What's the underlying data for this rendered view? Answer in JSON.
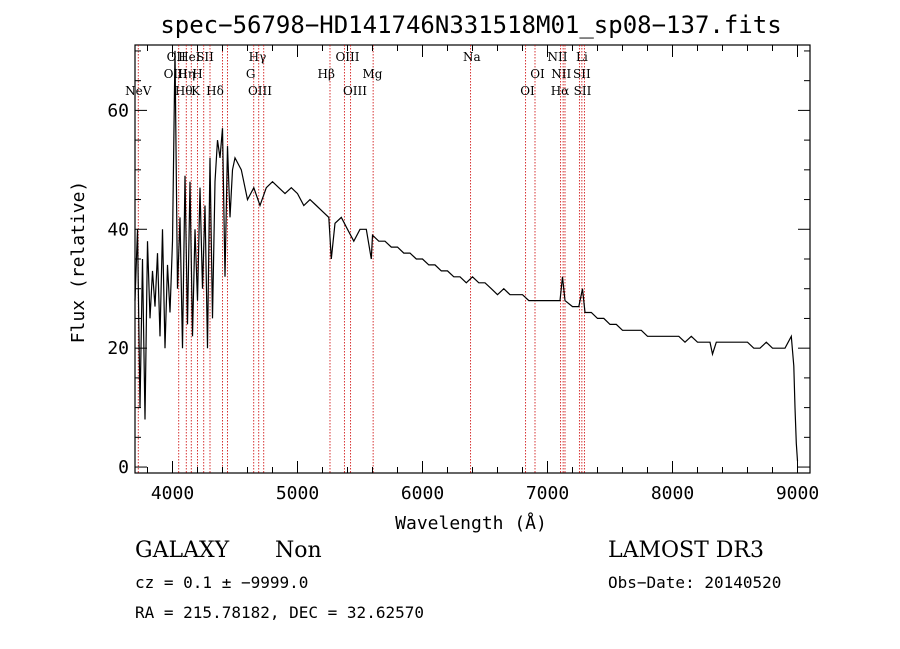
{
  "chart_data": {
    "type": "line",
    "title": "spec−56798−HD141746N331518M01_sp08−137.fits",
    "xlabel": "Wavelength (Å)",
    "ylabel": "Flux (relative)",
    "xlim": [
      3700,
      9100
    ],
    "ylim": [
      -1,
      71
    ],
    "xticks": [
      4000,
      5000,
      6000,
      7000,
      8000,
      9000
    ],
    "yticks": [
      0,
      20,
      40,
      60
    ],
    "grid": false,
    "series": [
      {
        "name": "spectrum",
        "x": [
          3700,
          3720,
          3740,
          3760,
          3780,
          3800,
          3820,
          3840,
          3860,
          3880,
          3900,
          3920,
          3940,
          3960,
          3980,
          4000,
          4020,
          4040,
          4060,
          4080,
          4100,
          4120,
          4140,
          4160,
          4180,
          4200,
          4220,
          4240,
          4260,
          4280,
          4300,
          4320,
          4340,
          4360,
          4380,
          4400,
          4420,
          4440,
          4460,
          4480,
          4500,
          4550,
          4600,
          4650,
          4700,
          4750,
          4800,
          4850,
          4900,
          4950,
          5000,
          5050,
          5100,
          5150,
          5200,
          5250,
          5270,
          5300,
          5350,
          5400,
          5450,
          5500,
          5550,
          5590,
          5600,
          5650,
          5700,
          5750,
          5800,
          5850,
          5900,
          5950,
          6000,
          6050,
          6100,
          6150,
          6200,
          6250,
          6300,
          6350,
          6400,
          6450,
          6500,
          6550,
          6600,
          6650,
          6700,
          6750,
          6800,
          6850,
          6900,
          6950,
          7000,
          7050,
          7100,
          7120,
          7140,
          7200,
          7250,
          7280,
          7300,
          7350,
          7400,
          7450,
          7500,
          7550,
          7600,
          7650,
          7700,
          7750,
          7800,
          7850,
          7900,
          7950,
          8000,
          8050,
          8100,
          8150,
          8200,
          8250,
          8300,
          8320,
          8350,
          8400,
          8450,
          8500,
          8550,
          8600,
          8650,
          8700,
          8750,
          8800,
          8850,
          8900,
          8950,
          8970,
          8980,
          8990,
          9000
        ],
        "values": [
          28,
          40,
          10,
          35,
          8,
          38,
          25,
          33,
          27,
          36,
          22,
          40,
          20,
          34,
          26,
          38,
          70,
          30,
          42,
          20,
          49,
          24,
          48,
          22,
          40,
          28,
          47,
          30,
          44,
          20,
          52,
          25,
          48,
          55,
          52,
          57,
          32,
          54,
          42,
          50,
          52,
          50,
          45,
          47,
          44,
          47,
          48,
          47,
          46,
          47,
          46,
          44,
          45,
          44,
          43,
          42,
          35,
          41,
          42,
          40,
          38,
          40,
          40,
          35,
          39,
          38,
          38,
          37,
          37,
          36,
          36,
          35,
          35,
          34,
          34,
          33,
          33,
          32,
          32,
          31,
          32,
          31,
          31,
          30,
          29,
          30,
          29,
          29,
          29,
          28,
          28,
          28,
          28,
          28,
          28,
          32,
          28,
          27,
          27,
          30,
          26,
          26,
          25,
          25,
          24,
          24,
          23,
          23,
          23,
          23,
          22,
          22,
          22,
          22,
          22,
          22,
          21,
          22,
          21,
          21,
          21,
          19,
          21,
          21,
          21,
          21,
          21,
          21,
          20,
          20,
          21,
          20,
          20,
          20,
          22,
          17,
          10,
          4,
          1
        ]
      }
    ],
    "spectral_lines": [
      {
        "label": "NeV",
        "x": 3726,
        "row": 3
      },
      {
        "label": "OII",
        "x": 4030,
        "row": 1
      },
      {
        "label": "OIII",
        "x": 4025,
        "row": 2
      },
      {
        "label": "Hθ",
        "x": 4090,
        "row": 3
      },
      {
        "label": "HeI",
        "x": 4135,
        "row": 1
      },
      {
        "label": "Hη",
        "x": 4110,
        "row": 2
      },
      {
        "label": "H",
        "x": 4200,
        "row": 2
      },
      {
        "label": "K",
        "x": 4185,
        "row": 3
      },
      {
        "label": "SII",
        "x": 4260,
        "row": 1
      },
      {
        "label": "Hδ",
        "x": 4340,
        "row": 3
      },
      {
        "label": "Hγ",
        "x": 4680,
        "row": 1
      },
      {
        "label": "G",
        "x": 4625,
        "row": 2
      },
      {
        "label": "OIII",
        "x": 4700,
        "row": 3
      },
      {
        "label": "Hβ",
        "x": 5230,
        "row": 2
      },
      {
        "label": "OIII",
        "x": 5400,
        "row": 1
      },
      {
        "label": "OIII",
        "x": 5460,
        "row": 3
      },
      {
        "label": "Mg",
        "x": 5600,
        "row": 2
      },
      {
        "label": "Na",
        "x": 6395,
        "row": 1
      },
      {
        "label": "OI",
        "x": 6920,
        "row": 2
      },
      {
        "label": "OI",
        "x": 6840,
        "row": 3
      },
      {
        "label": "NII",
        "x": 7080,
        "row": 1
      },
      {
        "label": "NII",
        "x": 7110,
        "row": 2
      },
      {
        "label": "Hα",
        "x": 7100,
        "row": 3
      },
      {
        "label": "Li",
        "x": 7275,
        "row": 1
      },
      {
        "label": "SII",
        "x": 7275,
        "row": 2
      },
      {
        "label": "SII",
        "x": 7280,
        "row": 3
      }
    ],
    "line_markers_x": [
      3726,
      4050,
      4110,
      4150,
      4200,
      4250,
      4300,
      4400,
      4440,
      4650,
      4690,
      4730,
      5260,
      5375,
      5425,
      5605,
      6385,
      6825,
      6900,
      7105,
      7125,
      7140,
      7255,
      7275,
      7295
    ]
  },
  "colors": {
    "axes": "#000000",
    "spectrum": "#000000",
    "markers": "#cc0000"
  },
  "footer": {
    "class_label": "GALAXY",
    "subclass_label": "Non",
    "survey": "LAMOST DR3",
    "cz_text": "cz = 0.1 ± −9999.0",
    "obs_date": "Obs−Date: 20140520",
    "coords": "RA = 215.78182, DEC =  32.62570"
  }
}
